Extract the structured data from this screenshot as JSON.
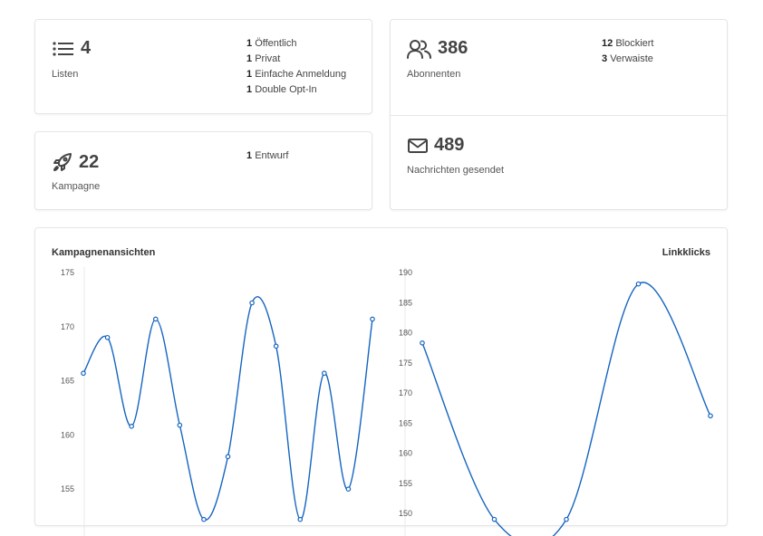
{
  "stats": {
    "lists": {
      "icon": "list-icon",
      "value": "4",
      "label": "Listen",
      "details": [
        {
          "count": "1",
          "text": "Öffentlich"
        },
        {
          "count": "1",
          "text": "Privat"
        },
        {
          "count": "1",
          "text": "Einfache Anmeldung"
        },
        {
          "count": "1",
          "text": "Double Opt-In"
        }
      ]
    },
    "campaigns": {
      "icon": "rocket-icon",
      "value": "22",
      "label": "Kampagne",
      "details": [
        {
          "count": "1",
          "text": "Entwurf"
        }
      ]
    },
    "subscribers": {
      "icon": "users-icon",
      "value": "386",
      "label": "Abonnenten",
      "details": [
        {
          "count": "12",
          "text": "Blockiert"
        },
        {
          "count": "3",
          "text": "Verwaiste"
        }
      ]
    },
    "messages": {
      "icon": "mail-icon",
      "value": "489",
      "label": "Nachrichten gesendet"
    }
  },
  "colors": {
    "accent": "#1565c0"
  },
  "chart_data": [
    {
      "type": "line",
      "title": "Kampagnenansichten",
      "xlabel": "",
      "ylabel": "",
      "ylim": [
        150,
        175
      ],
      "yticks": [
        155,
        160,
        165,
        170,
        175
      ],
      "grid": false,
      "smooth": true,
      "values": [
        165.7,
        169.0,
        160.8,
        170.7,
        160.9,
        152.2,
        158.0,
        172.2,
        168.2,
        152.2,
        165.7,
        155.0,
        170.7
      ]
    },
    {
      "type": "line",
      "title": "Linkklicks",
      "xlabel": "",
      "ylabel": "",
      "ylim": [
        150,
        190
      ],
      "yticks": [
        150,
        155,
        160,
        165,
        170,
        175,
        180,
        185,
        190
      ],
      "grid": false,
      "smooth": true,
      "values": [
        178.3,
        149.0,
        149.0,
        188.1,
        166.2
      ]
    }
  ]
}
